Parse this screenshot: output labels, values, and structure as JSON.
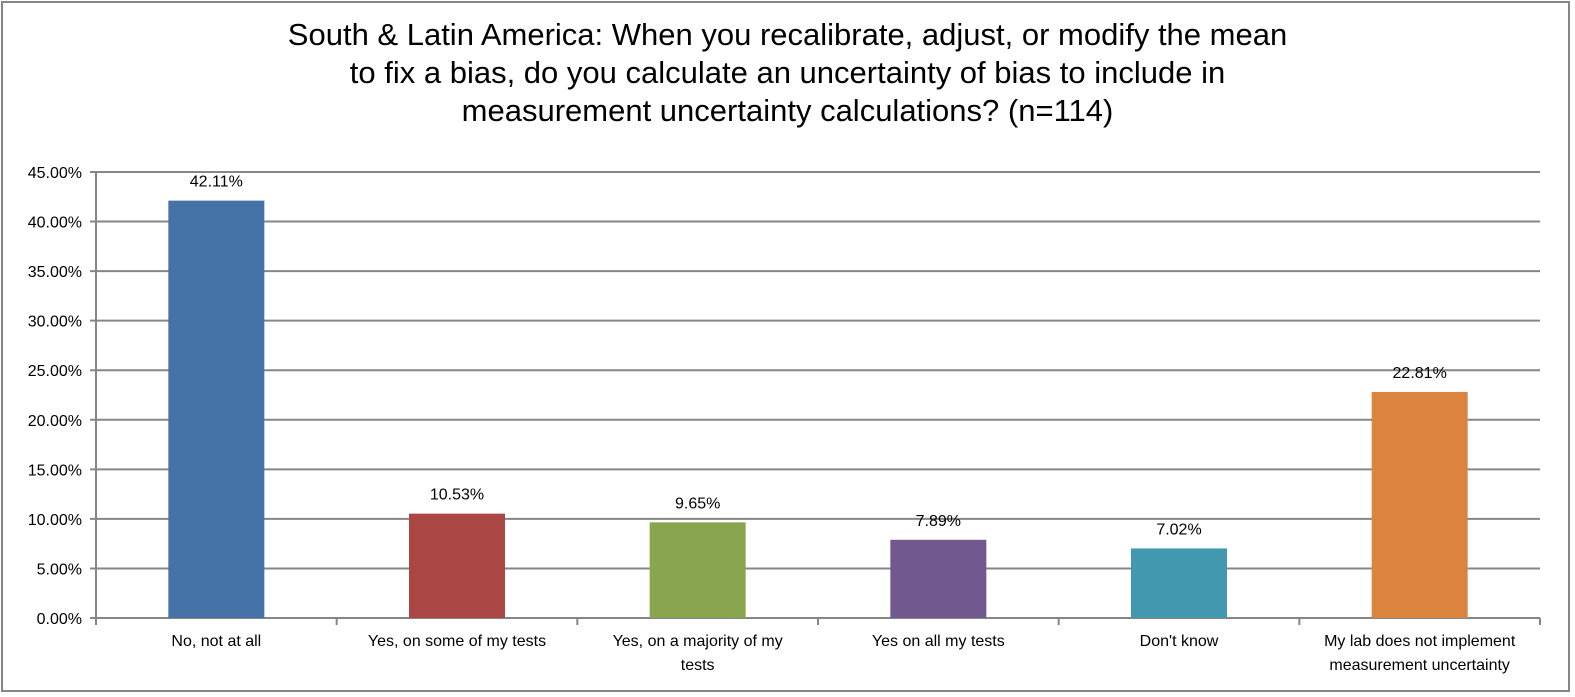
{
  "chart_data": {
    "type": "bar",
    "title_lines": [
      "South & Latin America: When you recalibrate, adjust, or modify the mean",
      "to fix a bias, do you calculate an uncertainty of bias to include in",
      "measurement uncertainty calculations? (n=114)"
    ],
    "categories": [
      [
        "No, not at all"
      ],
      [
        "Yes, on some of my tests"
      ],
      [
        "Yes, on a majority of my",
        "tests"
      ],
      [
        "Yes on all my tests"
      ],
      [
        "Don't know"
      ],
      [
        "My lab does not implement",
        "measurement uncertainty"
      ]
    ],
    "values": [
      42.11,
      10.53,
      9.65,
      7.89,
      7.02,
      22.81
    ],
    "data_labels": [
      "42.11%",
      "10.53%",
      "9.65%",
      "7.89%",
      "7.02%",
      "22.81%"
    ],
    "colors": [
      "#4572A7",
      "#AA4643",
      "#89A54E",
      "#71588F",
      "#4198AF",
      "#DB843D"
    ],
    "ylim": [
      0,
      45
    ],
    "yticks": [
      "0.00%",
      "5.00%",
      "10.00%",
      "15.00%",
      "20.00%",
      "25.00%",
      "30.00%",
      "35.00%",
      "40.00%",
      "45.00%"
    ],
    "grid": true,
    "legend": "none"
  }
}
